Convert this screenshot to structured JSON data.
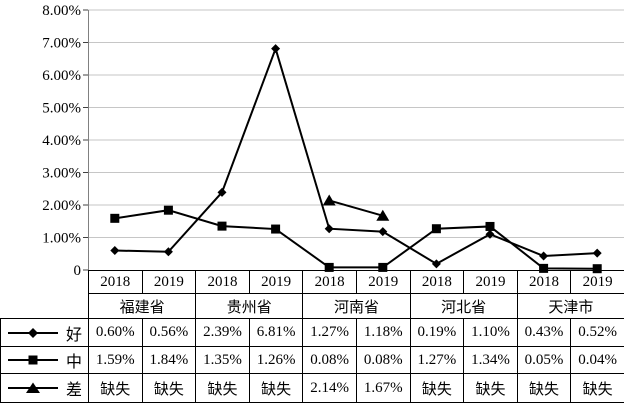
{
  "chart_data": {
    "type": "line",
    "ylim": [
      0,
      8
    ],
    "grid": true,
    "legend_position": "table-left",
    "line_color": "#000000",
    "grid_color": "#c6c6c6",
    "axis_color": "#808080",
    "missing_label": "缺失",
    "y_ticks": [
      {
        "label": "8.00%",
        "value": 8
      },
      {
        "label": "7.00%",
        "value": 7
      },
      {
        "label": "6.00%",
        "value": 6
      },
      {
        "label": "5.00%",
        "value": 5
      },
      {
        "label": "4.00%",
        "value": 4
      },
      {
        "label": "3.00%",
        "value": 3
      },
      {
        "label": "2.00%",
        "value": 2
      },
      {
        "label": "1.00%",
        "value": 1
      },
      {
        "label": "0",
        "value": 0
      }
    ],
    "x_groups": [
      {
        "province": "福建省",
        "years": [
          "2018",
          "2019"
        ]
      },
      {
        "province": "贵州省",
        "years": [
          "2018",
          "2019"
        ]
      },
      {
        "province": "河南省",
        "years": [
          "2018",
          "2019"
        ]
      },
      {
        "province": "河北省",
        "years": [
          "2018",
          "2019"
        ]
      },
      {
        "province": "天津市",
        "years": [
          "2018",
          "2019"
        ]
      }
    ],
    "series": [
      {
        "name": "好",
        "marker": "diamond",
        "values": [
          0.6,
          0.56,
          2.39,
          6.81,
          1.27,
          1.18,
          0.19,
          1.1,
          0.43,
          0.52
        ],
        "display": [
          "0.60%",
          "0.56%",
          "2.39%",
          "6.81%",
          "1.27%",
          "1.18%",
          "0.19%",
          "1.10%",
          "0.43%",
          "0.52%"
        ]
      },
      {
        "name": "中",
        "marker": "square",
        "values": [
          1.59,
          1.84,
          1.35,
          1.26,
          0.08,
          0.08,
          1.27,
          1.34,
          0.05,
          0.04
        ],
        "display": [
          "1.59%",
          "1.84%",
          "1.35%",
          "1.26%",
          "0.08%",
          "0.08%",
          "1.27%",
          "1.34%",
          "0.05%",
          "0.04%"
        ]
      },
      {
        "name": "差",
        "marker": "triangle",
        "values": [
          null,
          null,
          null,
          null,
          2.14,
          1.67,
          null,
          null,
          null,
          null
        ],
        "display": [
          "缺失",
          "缺失",
          "缺失",
          "缺失",
          "2.14%",
          "1.67%",
          "缺失",
          "缺失",
          "缺失",
          "缺失"
        ]
      }
    ]
  }
}
